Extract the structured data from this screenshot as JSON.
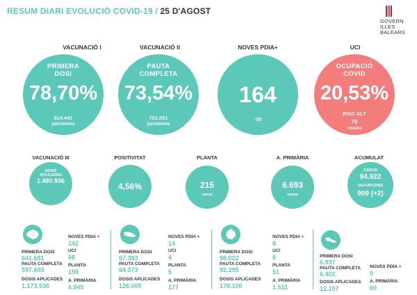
{
  "header": {
    "title_main": "RESUM DIARI EVOLUCIÓ COVID-19 / ",
    "title_date": "25 D'AGOST",
    "logo_line1": "GOVERN",
    "logo_line2": "ILLES",
    "logo_line3": "BALEARS",
    "brand_color": "#c8202f"
  },
  "top": [
    {
      "heading": "VACUNACIÓ I",
      "label1": "PRIMERA",
      "label2": "DOSI",
      "value": "78,70%",
      "sub1": "814.441",
      "sub2": "persones",
      "color": "#5cc8b8"
    },
    {
      "heading": "VACUNACIÓ II",
      "label1": "PAUTA",
      "label2": "COMPLETA",
      "value": "73,54%",
      "sub1": "761.051",
      "sub2": "persones",
      "color": "#5cc8b8"
    },
    {
      "heading": "NOVES PDIA+",
      "value": "164",
      "sub1": "-38",
      "color": "#5cc8b8"
    },
    {
      "heading": "UCI",
      "label1": "OCUPACIÓ",
      "label2": "COVID",
      "value": "20,53%",
      "sub1": "RISC ALT",
      "sub2": "70",
      "sub3": "casos",
      "color": "#f37d7c"
    }
  ],
  "middle": [
    {
      "heading": "VACUNACIÓ III",
      "small1": "DOSIS",
      "small2": "APLICADES",
      "value": "1.490.936"
    },
    {
      "heading": "POSITIVITAT",
      "value": "4,56%"
    },
    {
      "heading": "PLANTA",
      "value": "215",
      "small1": "casos"
    },
    {
      "heading": "A. PRIMÀRIA",
      "value": "6.693",
      "small1": "casos"
    },
    {
      "heading": "ACUMULAT",
      "small1": "CASOS",
      "value": "94.922",
      "small2": "DEFUNCIONS",
      "value2": "909 (+2)"
    }
  ],
  "islands": [
    {
      "icon": "mallorca-icon",
      "primera_label": "PRIMERA DOSI",
      "primera": "641.681",
      "pauta_label": "PAUTA COMPLETA",
      "pauta": "597.603",
      "dosis_label": "DOSIS APLICADES",
      "dosis": "1.173.936",
      "pdia_label": "NOVES PDIA +",
      "pdia": "142",
      "uci_label": "UCI",
      "uci": "58",
      "planta_label": "PLANTA",
      "planta": "159",
      "primaria_label": "A. PRIMÀRIA",
      "primaria": "4.945"
    },
    {
      "icon": "menorca-icon",
      "primera_label": "PRIMERA DOSI",
      "primera": "67.383",
      "pauta_label": "PAUTA COMPLETA",
      "pauta": "64.373",
      "dosis_label": "DOSIS APLICADES",
      "dosis": "126.009",
      "pdia_label": "NOVES PDIA +",
      "pdia": "14",
      "uci_label": "UCI",
      "uci": "4",
      "planta_label": "PLANTA",
      "planta": "5",
      "primaria_label": "A. PRIMÀRIA",
      "primaria": "177"
    },
    {
      "icon": "eivissa-icon",
      "primera_label": "PRIMERA DOSI",
      "primera": "98.022",
      "pauta_label": "PAUTA COMPLETA",
      "pauta": "92.295",
      "dosis_label": "DOSIS APLICADES",
      "dosis": "178.100",
      "pdia_label": "NOVES PDIA +",
      "pdia": "8",
      "uci_label": "UCI",
      "uci": "8",
      "planta_label": "PLANTA",
      "planta": "51",
      "primaria_label": "A. PRIMÀRIA",
      "primaria": "1.511"
    },
    {
      "icon": "formentera-icon",
      "primera_label": "PRIMERA DOSI",
      "primera": "6.937",
      "pauta_label": "PAUTA COMPLETA",
      "pauta": "6.402",
      "dosis_label": "DOSIS APLICADES",
      "dosis": "12.157",
      "pdia_label": "NOVES PDIA +",
      "pdia": "0",
      "primaria_label": "A. PRIMÀRIA",
      "primaria": "60"
    }
  ]
}
